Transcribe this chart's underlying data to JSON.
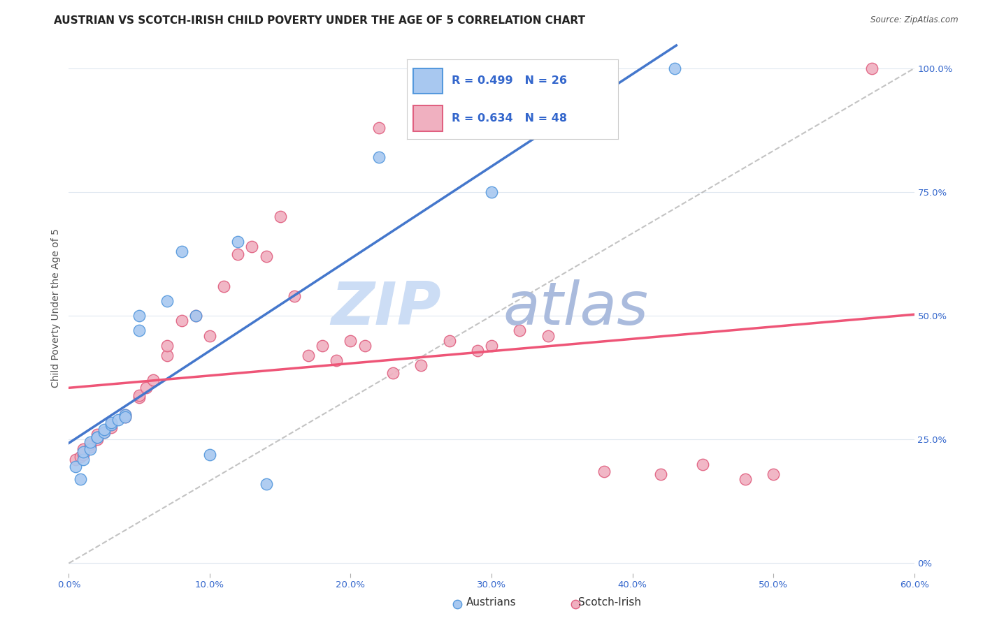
{
  "title": "AUSTRIAN VS SCOTCH-IRISH CHILD POVERTY UNDER THE AGE OF 5 CORRELATION CHART",
  "source": "Source: ZipAtlas.com",
  "ylabel": "Child Poverty Under the Age of 5",
  "xlim": [
    0.0,
    0.6
  ],
  "ylim": [
    -0.02,
    1.05
  ],
  "xtick_labels": [
    "0.0%",
    "",
    "10.0%",
    "",
    "20.0%",
    "",
    "30.0%",
    "",
    "40.0%",
    "",
    "50.0%",
    "",
    "60.0%"
  ],
  "xtick_vals": [
    0.0,
    0.05,
    0.1,
    0.15,
    0.2,
    0.25,
    0.3,
    0.35,
    0.4,
    0.45,
    0.5,
    0.55,
    0.6
  ],
  "ytick_right_labels": [
    "0%",
    "25.0%",
    "50.0%",
    "75.0%",
    "100.0%"
  ],
  "ytick_right_vals": [
    0.0,
    0.25,
    0.5,
    0.75,
    1.0
  ],
  "austrians_color": "#a8c8f0",
  "scotch_color": "#f0b0c0",
  "austrians_edge": "#5599dd",
  "scotch_edge": "#e06080",
  "regression_blue": "#4477cc",
  "regression_pink": "#ee5577",
  "background": "#ffffff",
  "watermark_zip_color": "#ccddf5",
  "watermark_atlas_color": "#aabbdd",
  "grid_color": "#e0e8f0",
  "austrians_x": [
    0.005,
    0.008,
    0.01,
    0.01,
    0.015,
    0.015,
    0.02,
    0.02,
    0.025,
    0.025,
    0.03,
    0.03,
    0.035,
    0.04,
    0.04,
    0.05,
    0.05,
    0.07,
    0.08,
    0.09,
    0.1,
    0.12,
    0.14,
    0.22,
    0.3,
    0.43
  ],
  "austrians_y": [
    0.195,
    0.17,
    0.21,
    0.225,
    0.23,
    0.245,
    0.255,
    0.255,
    0.265,
    0.27,
    0.28,
    0.285,
    0.29,
    0.3,
    0.295,
    0.5,
    0.47,
    0.53,
    0.63,
    0.5,
    0.22,
    0.65,
    0.16,
    0.82,
    0.75,
    1.0
  ],
  "scotch_x": [
    0.005,
    0.008,
    0.01,
    0.01,
    0.015,
    0.015,
    0.02,
    0.02,
    0.02,
    0.025,
    0.03,
    0.03,
    0.04,
    0.04,
    0.05,
    0.05,
    0.055,
    0.06,
    0.07,
    0.07,
    0.08,
    0.09,
    0.1,
    0.11,
    0.12,
    0.13,
    0.14,
    0.15,
    0.16,
    0.17,
    0.18,
    0.19,
    0.2,
    0.21,
    0.22,
    0.23,
    0.25,
    0.27,
    0.29,
    0.3,
    0.32,
    0.34,
    0.38,
    0.42,
    0.45,
    0.48,
    0.5,
    0.57
  ],
  "scotch_y": [
    0.21,
    0.215,
    0.22,
    0.23,
    0.235,
    0.24,
    0.25,
    0.255,
    0.26,
    0.265,
    0.275,
    0.28,
    0.3,
    0.295,
    0.335,
    0.34,
    0.355,
    0.37,
    0.42,
    0.44,
    0.49,
    0.5,
    0.46,
    0.56,
    0.625,
    0.64,
    0.62,
    0.7,
    0.54,
    0.42,
    0.44,
    0.41,
    0.45,
    0.44,
    0.88,
    0.385,
    0.4,
    0.45,
    0.43,
    0.44,
    0.47,
    0.46,
    0.185,
    0.18,
    0.2,
    0.17,
    0.18,
    1.0
  ],
  "title_fontsize": 11,
  "axis_label_fontsize": 10,
  "tick_fontsize": 9.5,
  "legend_fontsize": 13
}
